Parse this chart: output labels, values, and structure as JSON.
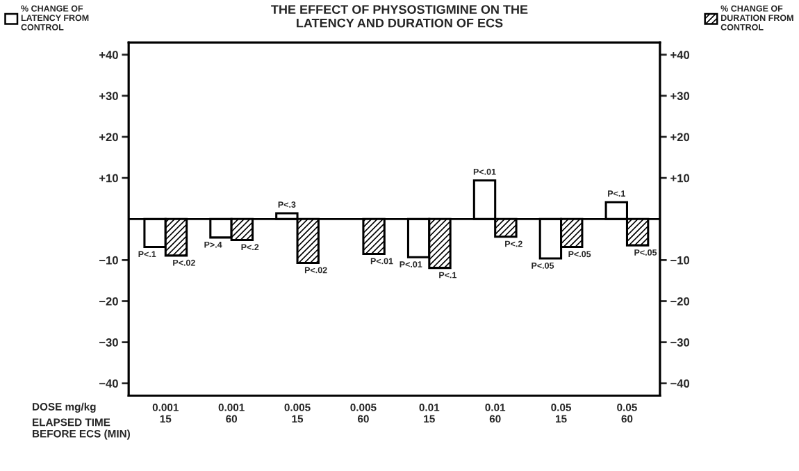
{
  "chart_data": {
    "type": "bar",
    "title": "THE EFFECT OF PHYSOSTIGMINE ON THE\nLATENCY AND DURATION OF ECS",
    "categories": [
      "0.001\n15",
      "0.001\n60",
      "0.005\n15",
      "0.005\n60",
      "0.01\n15",
      "0.01\n60",
      "0.05\n15",
      "0.05\n60"
    ],
    "series": [
      {
        "name": "% CHANGE OF\nLATENCY FROM\nCONTROL",
        "color": "#ffffff",
        "values": [
          -6.8,
          -4.5,
          1.4,
          null,
          -9.3,
          9.4,
          -9.6,
          4.1
        ],
        "value_labels": [
          "P<.1",
          "P>.4",
          "P<.3",
          null,
          "P<.01",
          "P<.01",
          "P<.05",
          "P<.1"
        ]
      },
      {
        "name": "% CHANGE OF\nDURATION FROM\nCONTROL",
        "color": "#000000",
        "axis": "y2",
        "values": [
          -8.9,
          -5.1,
          -10.7,
          -8.5,
          -11.9,
          -4.3,
          -6.8,
          -6.4
        ],
        "value_labels": [
          "P<.02",
          "P<.2",
          "P<.02",
          "P<.01",
          "P<.1",
          "P<.2",
          "P<.05",
          "P<.05"
        ]
      }
    ],
    "ylim": [
      -43,
      43
    ],
    "yticks": [
      {
        "value": 40,
        "label": "+40"
      },
      {
        "value": 30,
        "label": "+30"
      },
      {
        "value": 20,
        "label": "+20"
      },
      {
        "value": 10,
        "label": "+10"
      },
      {
        "value": -10,
        "label": "−10"
      },
      {
        "value": -20,
        "label": "−20"
      },
      {
        "value": -30,
        "label": "−30"
      },
      {
        "value": -40,
        "label": "−40"
      }
    ],
    "y2lim": [
      -43,
      43
    ],
    "y2ticks": [
      {
        "value": 40,
        "label": "+40"
      },
      {
        "value": 30,
        "label": "+30"
      },
      {
        "value": 20,
        "label": "+20"
      },
      {
        "value": 10,
        "label": "+10"
      },
      {
        "value": -10,
        "label": "−10"
      },
      {
        "value": -20,
        "label": "−20"
      },
      {
        "value": -30,
        "label": "−30"
      },
      {
        "value": -40,
        "label": "−40"
      }
    ],
    "ref_lines": [
      {
        "axis": "y",
        "value": 0
      }
    ],
    "annotations": [
      "DOSE mg/kg",
      "ELAPSED TIME\nBEFORE ECS (MIN)"
    ],
    "legend": "top",
    "grid": false
  }
}
